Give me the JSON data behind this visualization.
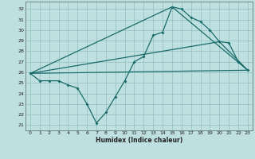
{
  "xlabel": "Humidex (Indice chaleur)",
  "bg_color": "#bfe0e0",
  "grid_color": "#99c4c4",
  "line_color": "#1a6b6b",
  "xlim": [
    -0.5,
    23.5
  ],
  "ylim": [
    20.5,
    32.7
  ],
  "yticks": [
    21,
    22,
    23,
    24,
    25,
    26,
    27,
    28,
    29,
    30,
    31,
    32
  ],
  "xticks": [
    0,
    1,
    2,
    3,
    4,
    5,
    6,
    7,
    8,
    9,
    10,
    11,
    12,
    13,
    14,
    15,
    16,
    17,
    18,
    19,
    20,
    21,
    22,
    23
  ],
  "line1_x": [
    0,
    1,
    2,
    3,
    4,
    5,
    6,
    7,
    8,
    9,
    10,
    11,
    12,
    13,
    14,
    15,
    16,
    17,
    18,
    19,
    20,
    21,
    22,
    23
  ],
  "line1_y": [
    25.9,
    25.2,
    25.2,
    25.2,
    24.8,
    24.5,
    23.0,
    21.2,
    22.2,
    23.7,
    25.2,
    27.0,
    27.5,
    29.5,
    29.8,
    32.2,
    32.0,
    31.2,
    30.8,
    30.0,
    28.9,
    28.8,
    27.0,
    26.2
  ],
  "line2_x": [
    0,
    23
  ],
  "line2_y": [
    25.9,
    26.2
  ],
  "line3_x": [
    0,
    15,
    23
  ],
  "line3_y": [
    25.9,
    32.2,
    26.2
  ],
  "line4_x": [
    0,
    20,
    23
  ],
  "line4_y": [
    25.9,
    28.9,
    26.2
  ]
}
